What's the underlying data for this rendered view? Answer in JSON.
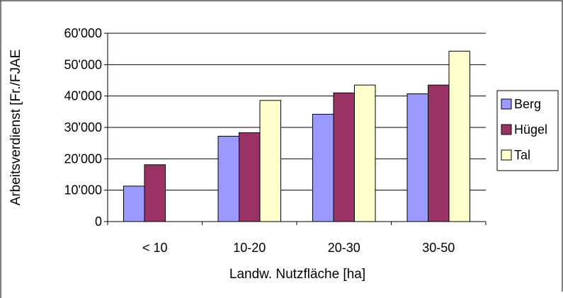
{
  "chart_data": {
    "type": "bar",
    "title": "",
    "xlabel": "Landw. Nutzfläche [ha]",
    "ylabel": "Arbeitsverdienst [Fr./FJAE",
    "categories": [
      "< 10",
      "10-20",
      "20-30",
      "30-50"
    ],
    "ylim": [
      0,
      60000
    ],
    "yticks": [
      0,
      10000,
      20000,
      30000,
      40000,
      50000,
      60000
    ],
    "ytick_labels": [
      "0",
      "10'000",
      "20'000",
      "30'000",
      "40'000",
      "50'000",
      "60'000"
    ],
    "grid": "horizontal",
    "legend_position": "right",
    "series": [
      {
        "name": "Berg",
        "color": "#9999ff",
        "values": [
          11300,
          27200,
          34200,
          40700
        ]
      },
      {
        "name": "Hügel",
        "color": "#993366",
        "values": [
          18100,
          28300,
          41000,
          43500
        ]
      },
      {
        "name": "Tal",
        "color": "#ffffcc",
        "values": [
          null,
          38600,
          43500,
          54300
        ]
      }
    ]
  }
}
